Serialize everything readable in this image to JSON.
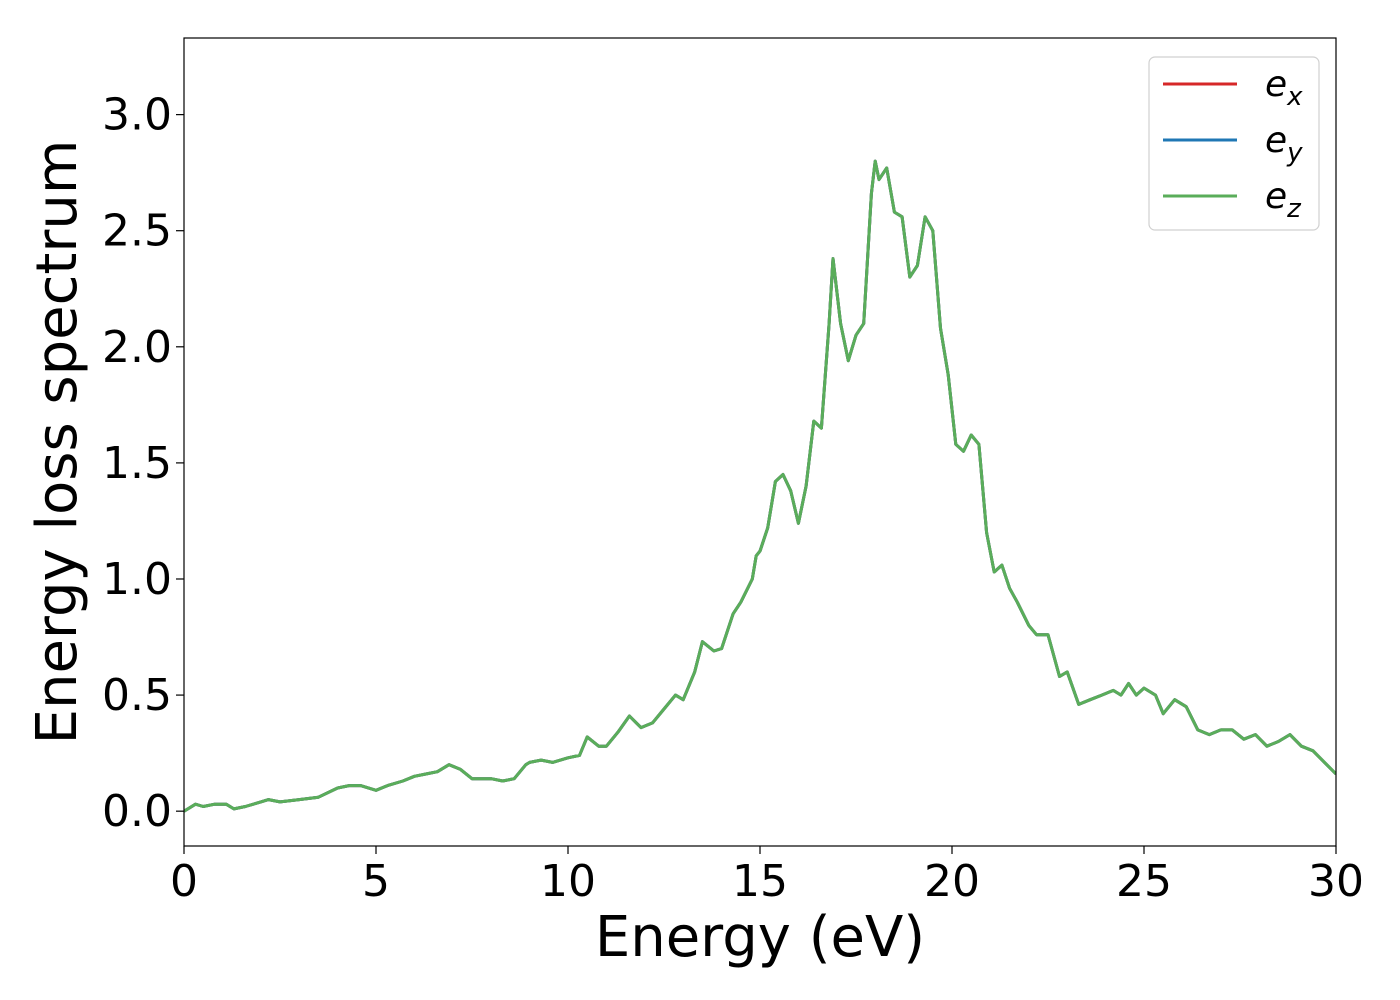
{
  "chart_data": {
    "type": "line",
    "title": "",
    "xlabel": "Energy (eV)",
    "ylabel": "Energy loss spectrum",
    "xlim": [
      0,
      30
    ],
    "ylim": [
      -0.15,
      3.33
    ],
    "xticks": [
      "0",
      "5",
      "10",
      "15",
      "20",
      "25",
      "30"
    ],
    "yticks": [
      "0.0",
      "0.5",
      "1.0",
      "1.5",
      "2.0",
      "2.5",
      "3.0"
    ],
    "grid": false,
    "legend": {
      "position": "top-right"
    },
    "series": [
      {
        "name": "e_x",
        "label_base": "e",
        "label_sub": "x",
        "color": "#d62728",
        "x": [
          0,
          0.3,
          0.5,
          0.8,
          1.1,
          1.3,
          1.6,
          2.0,
          2.2,
          2.5,
          3.0,
          3.5,
          4.0,
          4.3,
          4.6,
          5.0,
          5.3,
          5.7,
          6.0,
          6.3,
          6.6,
          6.9,
          7.2,
          7.5,
          7.8,
          8.0,
          8.3,
          8.6,
          8.9,
          9.0,
          9.3,
          9.6,
          10.0,
          10.3,
          10.5,
          10.8,
          11.0,
          11.3,
          11.6,
          11.9,
          12.2,
          12.5,
          12.8,
          13.0,
          13.3,
          13.5,
          13.8,
          14.0,
          14.3,
          14.5,
          14.8,
          14.9,
          15.0,
          15.2,
          15.4,
          15.6,
          15.8,
          16.0,
          16.2,
          16.4,
          16.6,
          16.8,
          16.9,
          17.1,
          17.3,
          17.5,
          17.7,
          17.9,
          18.0,
          18.1,
          18.3,
          18.5,
          18.7,
          18.9,
          19.1,
          19.3,
          19.5,
          19.7,
          19.9,
          20.1,
          20.3,
          20.5,
          20.7,
          20.9,
          21.1,
          21.3,
          21.5,
          21.7,
          22.0,
          22.2,
          22.5,
          22.8,
          23.0,
          23.3,
          23.6,
          23.9,
          24.2,
          24.4,
          24.6,
          24.8,
          25.0,
          25.3,
          25.5,
          25.8,
          26.1,
          26.4,
          26.7,
          27.0,
          27.3,
          27.6,
          27.9,
          28.2,
          28.5,
          28.8,
          29.1,
          29.4,
          29.7,
          30.0
        ],
        "values": [
          0.0,
          0.03,
          0.02,
          0.03,
          0.03,
          0.01,
          0.02,
          0.04,
          0.05,
          0.04,
          0.05,
          0.06,
          0.1,
          0.11,
          0.11,
          0.09,
          0.11,
          0.13,
          0.15,
          0.16,
          0.17,
          0.2,
          0.18,
          0.14,
          0.14,
          0.14,
          0.13,
          0.14,
          0.2,
          0.21,
          0.22,
          0.21,
          0.23,
          0.24,
          0.32,
          0.28,
          0.28,
          0.34,
          0.41,
          0.36,
          0.38,
          0.44,
          0.5,
          0.48,
          0.6,
          0.73,
          0.69,
          0.7,
          0.85,
          0.9,
          1.0,
          1.1,
          1.12,
          1.22,
          1.42,
          1.45,
          1.38,
          1.24,
          1.4,
          1.68,
          1.65,
          2.1,
          2.38,
          2.1,
          1.94,
          2.05,
          2.1,
          2.66,
          2.8,
          2.72,
          2.77,
          2.58,
          2.56,
          2.3,
          2.35,
          2.56,
          2.5,
          2.08,
          1.88,
          1.58,
          1.55,
          1.62,
          1.58,
          1.2,
          1.03,
          1.06,
          0.96,
          0.9,
          0.8,
          0.76,
          0.76,
          0.58,
          0.6,
          0.46,
          0.48,
          0.5,
          0.52,
          0.5,
          0.55,
          0.5,
          0.53,
          0.5,
          0.42,
          0.48,
          0.45,
          0.35,
          0.33,
          0.35,
          0.35,
          0.31,
          0.33,
          0.28,
          0.3,
          0.33,
          0.28,
          0.26,
          0.21,
          0.16
        ]
      },
      {
        "name": "e_y",
        "label_base": "e",
        "label_sub": "y",
        "color": "#1f77b4",
        "x": [
          0,
          0.3,
          0.5,
          0.8,
          1.1,
          1.3,
          1.6,
          2.0,
          2.2,
          2.5,
          3.0,
          3.5,
          4.0,
          4.3,
          4.6,
          5.0,
          5.3,
          5.7,
          6.0,
          6.3,
          6.6,
          6.9,
          7.2,
          7.5,
          7.8,
          8.0,
          8.3,
          8.6,
          8.9,
          9.0,
          9.3,
          9.6,
          10.0,
          10.3,
          10.5,
          10.8,
          11.0,
          11.3,
          11.6,
          11.9,
          12.2,
          12.5,
          12.8,
          13.0,
          13.3,
          13.5,
          13.8,
          14.0,
          14.3,
          14.5,
          14.8,
          14.9,
          15.0,
          15.2,
          15.4,
          15.6,
          15.8,
          16.0,
          16.2,
          16.4,
          16.6,
          16.8,
          16.9,
          17.1,
          17.3,
          17.5,
          17.7,
          17.9,
          18.0,
          18.1,
          18.3,
          18.5,
          18.7,
          18.9,
          19.1,
          19.3,
          19.5,
          19.7,
          19.9,
          20.1,
          20.3,
          20.5,
          20.7,
          20.9,
          21.1,
          21.3,
          21.5,
          21.7,
          22.0,
          22.2,
          22.5,
          22.8,
          23.0,
          23.3,
          23.6,
          23.9,
          24.2,
          24.4,
          24.6,
          24.8,
          25.0,
          25.3,
          25.5,
          25.8,
          26.1,
          26.4,
          26.7,
          27.0,
          27.3,
          27.6,
          27.9,
          28.2,
          28.5,
          28.8,
          29.1,
          29.4,
          29.7,
          30.0
        ],
        "values": [
          0.0,
          0.03,
          0.02,
          0.03,
          0.03,
          0.01,
          0.02,
          0.04,
          0.05,
          0.04,
          0.05,
          0.06,
          0.1,
          0.11,
          0.11,
          0.09,
          0.11,
          0.13,
          0.15,
          0.16,
          0.17,
          0.2,
          0.18,
          0.14,
          0.14,
          0.14,
          0.13,
          0.14,
          0.2,
          0.21,
          0.22,
          0.21,
          0.23,
          0.24,
          0.32,
          0.28,
          0.28,
          0.34,
          0.41,
          0.36,
          0.38,
          0.44,
          0.5,
          0.48,
          0.6,
          0.73,
          0.69,
          0.7,
          0.85,
          0.9,
          1.0,
          1.1,
          1.12,
          1.22,
          1.42,
          1.45,
          1.38,
          1.24,
          1.4,
          1.68,
          1.65,
          2.1,
          2.38,
          2.1,
          1.94,
          2.05,
          2.1,
          2.66,
          2.8,
          2.72,
          2.77,
          2.58,
          2.56,
          2.3,
          2.35,
          2.56,
          2.5,
          2.08,
          1.88,
          1.58,
          1.55,
          1.62,
          1.58,
          1.2,
          1.03,
          1.06,
          0.96,
          0.9,
          0.8,
          0.76,
          0.76,
          0.58,
          0.6,
          0.46,
          0.48,
          0.5,
          0.52,
          0.5,
          0.55,
          0.5,
          0.53,
          0.5,
          0.42,
          0.48,
          0.45,
          0.35,
          0.33,
          0.35,
          0.35,
          0.31,
          0.33,
          0.28,
          0.3,
          0.33,
          0.28,
          0.26,
          0.21,
          0.16
        ]
      },
      {
        "name": "e_z",
        "label_base": "e",
        "label_sub": "z",
        "color": "#5aad5a",
        "x": [
          0,
          0.3,
          0.5,
          0.8,
          1.1,
          1.3,
          1.6,
          2.0,
          2.2,
          2.5,
          3.0,
          3.5,
          4.0,
          4.3,
          4.6,
          5.0,
          5.3,
          5.7,
          6.0,
          6.3,
          6.6,
          6.9,
          7.2,
          7.5,
          7.8,
          8.0,
          8.3,
          8.6,
          8.9,
          9.0,
          9.3,
          9.6,
          10.0,
          10.3,
          10.5,
          10.8,
          11.0,
          11.3,
          11.6,
          11.9,
          12.2,
          12.5,
          12.8,
          13.0,
          13.3,
          13.5,
          13.8,
          14.0,
          14.3,
          14.5,
          14.8,
          14.9,
          15.0,
          15.2,
          15.4,
          15.6,
          15.8,
          16.0,
          16.2,
          16.4,
          16.6,
          16.8,
          16.9,
          17.1,
          17.3,
          17.5,
          17.7,
          17.9,
          18.0,
          18.1,
          18.3,
          18.5,
          18.7,
          18.9,
          19.1,
          19.3,
          19.5,
          19.7,
          19.9,
          20.1,
          20.3,
          20.5,
          20.7,
          20.9,
          21.1,
          21.3,
          21.5,
          21.7,
          22.0,
          22.2,
          22.5,
          22.8,
          23.0,
          23.3,
          23.6,
          23.9,
          24.2,
          24.4,
          24.6,
          24.8,
          25.0,
          25.3,
          25.5,
          25.8,
          26.1,
          26.4,
          26.7,
          27.0,
          27.3,
          27.6,
          27.9,
          28.2,
          28.5,
          28.8,
          29.1,
          29.4,
          29.7,
          30.0
        ],
        "values": [
          0.0,
          0.03,
          0.02,
          0.03,
          0.03,
          0.01,
          0.02,
          0.04,
          0.05,
          0.04,
          0.05,
          0.06,
          0.1,
          0.11,
          0.11,
          0.09,
          0.11,
          0.13,
          0.15,
          0.16,
          0.17,
          0.2,
          0.18,
          0.14,
          0.14,
          0.14,
          0.13,
          0.14,
          0.2,
          0.21,
          0.22,
          0.21,
          0.23,
          0.24,
          0.32,
          0.28,
          0.28,
          0.34,
          0.41,
          0.36,
          0.38,
          0.44,
          0.5,
          0.48,
          0.6,
          0.73,
          0.69,
          0.7,
          0.85,
          0.9,
          1.0,
          1.1,
          1.12,
          1.22,
          1.42,
          1.45,
          1.38,
          1.24,
          1.4,
          1.68,
          1.65,
          2.1,
          2.38,
          2.1,
          1.94,
          2.05,
          2.1,
          2.66,
          2.8,
          2.72,
          2.77,
          2.58,
          2.56,
          2.3,
          2.35,
          2.56,
          2.5,
          2.08,
          1.88,
          1.58,
          1.55,
          1.62,
          1.58,
          1.2,
          1.03,
          1.06,
          0.96,
          0.9,
          0.8,
          0.76,
          0.76,
          0.58,
          0.6,
          0.46,
          0.48,
          0.5,
          0.52,
          0.5,
          0.55,
          0.5,
          0.53,
          0.5,
          0.42,
          0.48,
          0.45,
          0.35,
          0.33,
          0.35,
          0.35,
          0.31,
          0.33,
          0.28,
          0.3,
          0.33,
          0.28,
          0.26,
          0.21,
          0.16
        ]
      }
    ]
  }
}
